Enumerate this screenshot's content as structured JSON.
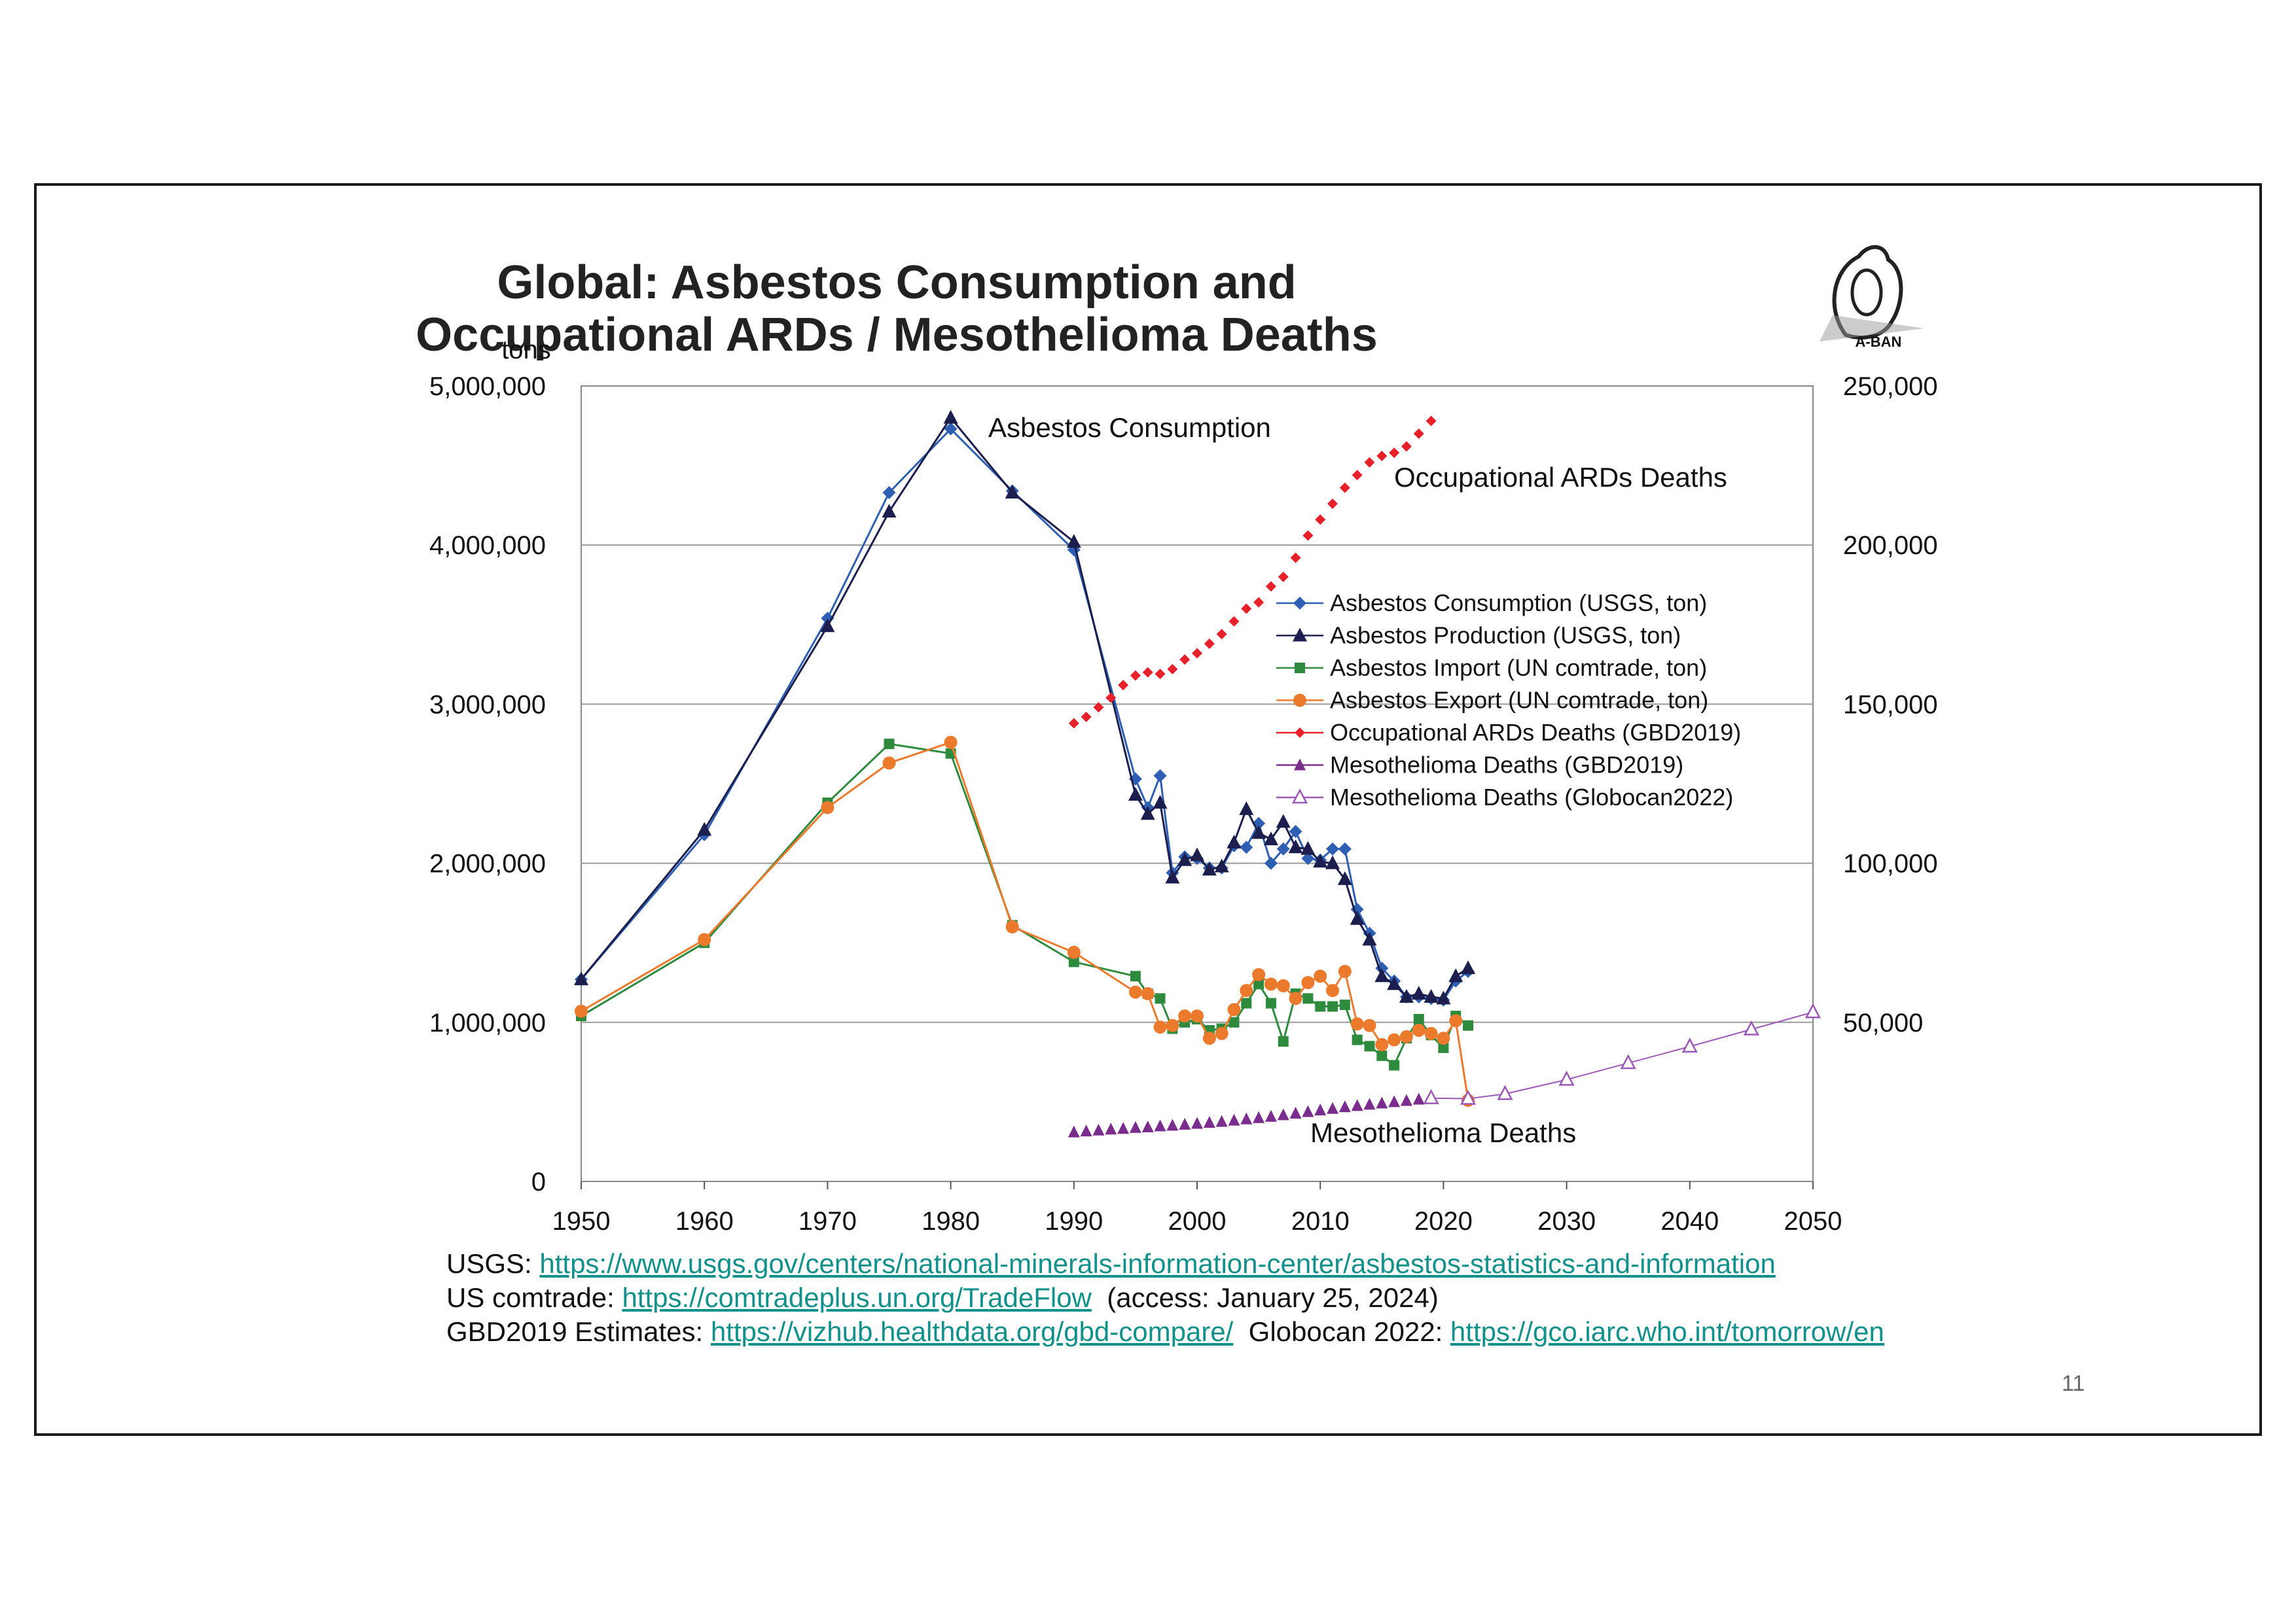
{
  "page": {
    "number": "11",
    "logo_label": "A-BAN"
  },
  "sources": {
    "line1_prefix": "USGS: ",
    "line1_link": "https://www.usgs.gov/centers/national-minerals-information-center/asbestos-statistics-and-information",
    "line2_prefix": "US comtrade: ",
    "line2_link": "https://comtradeplus.un.org/TradeFlow",
    "line2_suffix": "  (access: January 25, 2024)",
    "line3_prefix": "GBD2019 Estimates: ",
    "line3_link": "https://vizhub.healthdata.org/gbd-compare/",
    "line3_mid": "  Globocan 2022: ",
    "line3_link2": "https://gco.iarc.who.int/tomorrow/en"
  },
  "chart_data": {
    "type": "line",
    "title_line1": "Global: Asbestos Consumption and",
    "title_line2": "Occupational ARDs / Mesothelioma Deaths",
    "ylabel_left": "tons",
    "xlim": [
      1950,
      2050
    ],
    "ylim_left": [
      0,
      5000000
    ],
    "ylim_right": [
      0,
      250000
    ],
    "x_ticks": [
      "1950",
      "1960",
      "1970",
      "1980",
      "1990",
      "2000",
      "2010",
      "2020",
      "2030",
      "2040",
      "2050"
    ],
    "y_left_ticks": [
      {
        "value": 0,
        "label": "0"
      },
      {
        "value": 1000000,
        "label": "1,000,000"
      },
      {
        "value": 2000000,
        "label": "2,000,000"
      },
      {
        "value": 3000000,
        "label": "3,000,000"
      },
      {
        "value": 4000000,
        "label": "4,000,000"
      },
      {
        "value": 5000000,
        "label": "5,000,000"
      }
    ],
    "y_right_ticks": [
      {
        "value": 50000,
        "label": "50,000"
      },
      {
        "value": 100000,
        "label": "100,000"
      },
      {
        "value": 150000,
        "label": "150,000"
      },
      {
        "value": 200000,
        "label": "200,000"
      },
      {
        "value": 250000,
        "label": "250,000"
      }
    ],
    "grid": "horizontal",
    "legend_position": "center-right",
    "annotations": [
      "Asbestos Consumption",
      "Occupational ARDs Deaths",
      "Mesothelioma Deaths"
    ],
    "series": [
      {
        "name": "Asbestos Consumption (USGS, ton)",
        "axis": "left",
        "color": "#2e5fb3",
        "marker": "diamond",
        "x": [
          1950,
          1960,
          1970,
          1975,
          1980,
          1985,
          1990,
          1995,
          1996,
          1997,
          1998,
          1999,
          2000,
          2001,
          2002,
          2003,
          2004,
          2005,
          2006,
          2007,
          2008,
          2009,
          2010,
          2011,
          2012,
          2013,
          2014,
          2015,
          2016,
          2017,
          2018,
          2019,
          2020,
          2021,
          2022
        ],
        "y": [
          1270000,
          2180000,
          3540000,
          4330000,
          4730000,
          4340000,
          3970000,
          2530000,
          2350000,
          2550000,
          1940000,
          2040000,
          2030000,
          1970000,
          1970000,
          2110000,
          2100000,
          2250000,
          2000000,
          2090000,
          2200000,
          2030000,
          2020000,
          2090000,
          2090000,
          1710000,
          1560000,
          1340000,
          1260000,
          1160000,
          1160000,
          1150000,
          1140000,
          1260000,
          1320000
        ]
      },
      {
        "name": "Asbestos Production (USGS, ton)",
        "axis": "left",
        "color": "#1c1f4d",
        "marker": "triangle",
        "x": [
          1950,
          1960,
          1970,
          1975,
          1980,
          1985,
          1990,
          1995,
          1996,
          1997,
          1998,
          1999,
          2000,
          2001,
          2002,
          2003,
          2004,
          2005,
          2006,
          2007,
          2008,
          2009,
          2010,
          2011,
          2012,
          2013,
          2014,
          2015,
          2016,
          2017,
          2018,
          2019,
          2020,
          2021,
          2022
        ],
        "y": [
          1270000,
          2210000,
          3490000,
          4210000,
          4800000,
          4330000,
          4020000,
          2430000,
          2310000,
          2380000,
          1910000,
          2020000,
          2050000,
          1960000,
          1980000,
          2130000,
          2340000,
          2190000,
          2150000,
          2260000,
          2100000,
          2090000,
          2010000,
          2000000,
          1900000,
          1650000,
          1520000,
          1290000,
          1240000,
          1160000,
          1180000,
          1160000,
          1150000,
          1290000,
          1340000
        ]
      },
      {
        "name": "Asbestos Import (UN comtrade, ton)",
        "axis": "left",
        "color": "#2e8b3e",
        "marker": "square",
        "x": [
          1950,
          1960,
          1970,
          1975,
          1980,
          1985,
          1990,
          1995,
          1996,
          1997,
          1998,
          1999,
          2000,
          2001,
          2002,
          2003,
          2004,
          2005,
          2006,
          2007,
          2008,
          2009,
          2010,
          2011,
          2012,
          2013,
          2014,
          2015,
          2016,
          2017,
          2018,
          2019,
          2020,
          2021,
          2022
        ],
        "y": [
          1040000,
          1500000,
          2380000,
          2750000,
          2690000,
          1610000,
          1380000,
          1290000,
          1180000,
          1150000,
          960000,
          1000000,
          1020000,
          950000,
          960000,
          1000000,
          1120000,
          1240000,
          1120000,
          880000,
          1180000,
          1150000,
          1100000,
          1100000,
          1110000,
          890000,
          850000,
          790000,
          730000,
          900000,
          1020000,
          920000,
          840000,
          1040000,
          980000
        ]
      },
      {
        "name": "Asbestos Export (UN comtrade, ton)",
        "axis": "left",
        "color": "#ec7a2c",
        "marker": "circle",
        "x": [
          1950,
          1960,
          1970,
          1975,
          1980,
          1985,
          1990,
          1995,
          1996,
          1997,
          1998,
          1999,
          2000,
          2001,
          2002,
          2003,
          2004,
          2005,
          2006,
          2007,
          2008,
          2009,
          2010,
          2011,
          2012,
          2013,
          2014,
          2015,
          2016,
          2017,
          2018,
          2019,
          2020,
          2021,
          2022
        ],
        "y": [
          1070000,
          1520000,
          2350000,
          2630000,
          2760000,
          1600000,
          1440000,
          1190000,
          1180000,
          970000,
          980000,
          1040000,
          1040000,
          900000,
          930000,
          1080000,
          1200000,
          1300000,
          1240000,
          1230000,
          1150000,
          1250000,
          1290000,
          1200000,
          1320000,
          990000,
          980000,
          860000,
          890000,
          910000,
          950000,
          930000,
          900000,
          1010000,
          510000
        ]
      },
      {
        "name": "Occupational ARDs Deaths (GBD2019)",
        "axis": "right",
        "color": "#e8202a",
        "marker": "diamond-small",
        "x": [
          1990,
          1991,
          1992,
          1993,
          1994,
          1995,
          1996,
          1997,
          1998,
          1999,
          2000,
          2001,
          2002,
          2003,
          2004,
          2005,
          2006,
          2007,
          2008,
          2009,
          2010,
          2011,
          2012,
          2013,
          2014,
          2015,
          2016,
          2017,
          2018,
          2019
        ],
        "y": [
          144000,
          146000,
          149000,
          152000,
          156000,
          159000,
          160000,
          159500,
          161000,
          164000,
          166000,
          169000,
          172000,
          176000,
          180000,
          182000,
          187000,
          190000,
          196000,
          203000,
          208000,
          213000,
          218000,
          222000,
          226000,
          228000,
          229000,
          231000,
          235000,
          239000
        ]
      },
      {
        "name": "Mesothelioma Deaths (GBD2019)",
        "axis": "right",
        "color": "#7b2d8e",
        "marker": "triangle-filled",
        "x": [
          1990,
          1991,
          1992,
          1993,
          1994,
          1995,
          1996,
          1997,
          1998,
          1999,
          2000,
          2001,
          2002,
          2003,
          2004,
          2005,
          2006,
          2007,
          2008,
          2009,
          2010,
          2011,
          2012,
          2013,
          2014,
          2015,
          2016,
          2017,
          2018,
          2019
        ],
        "y": [
          15500,
          15800,
          16100,
          16400,
          16600,
          16900,
          17100,
          17400,
          17600,
          17900,
          18200,
          18500,
          18800,
          19200,
          19600,
          20000,
          20400,
          20900,
          21400,
          21900,
          22400,
          22900,
          23400,
          23800,
          24200,
          24600,
          25000,
          25400,
          25800,
          26200
        ]
      },
      {
        "name": "Mesothelioma Deaths (Globocan2022)",
        "axis": "right",
        "color": "#9b59b6",
        "marker": "triangle-open",
        "x": [
          2019,
          2022,
          2025,
          2030,
          2035,
          2040,
          2045,
          2050
        ],
        "y": [
          26200,
          26000,
          27500,
          32000,
          37200,
          42400,
          47800,
          53200
        ]
      }
    ]
  }
}
